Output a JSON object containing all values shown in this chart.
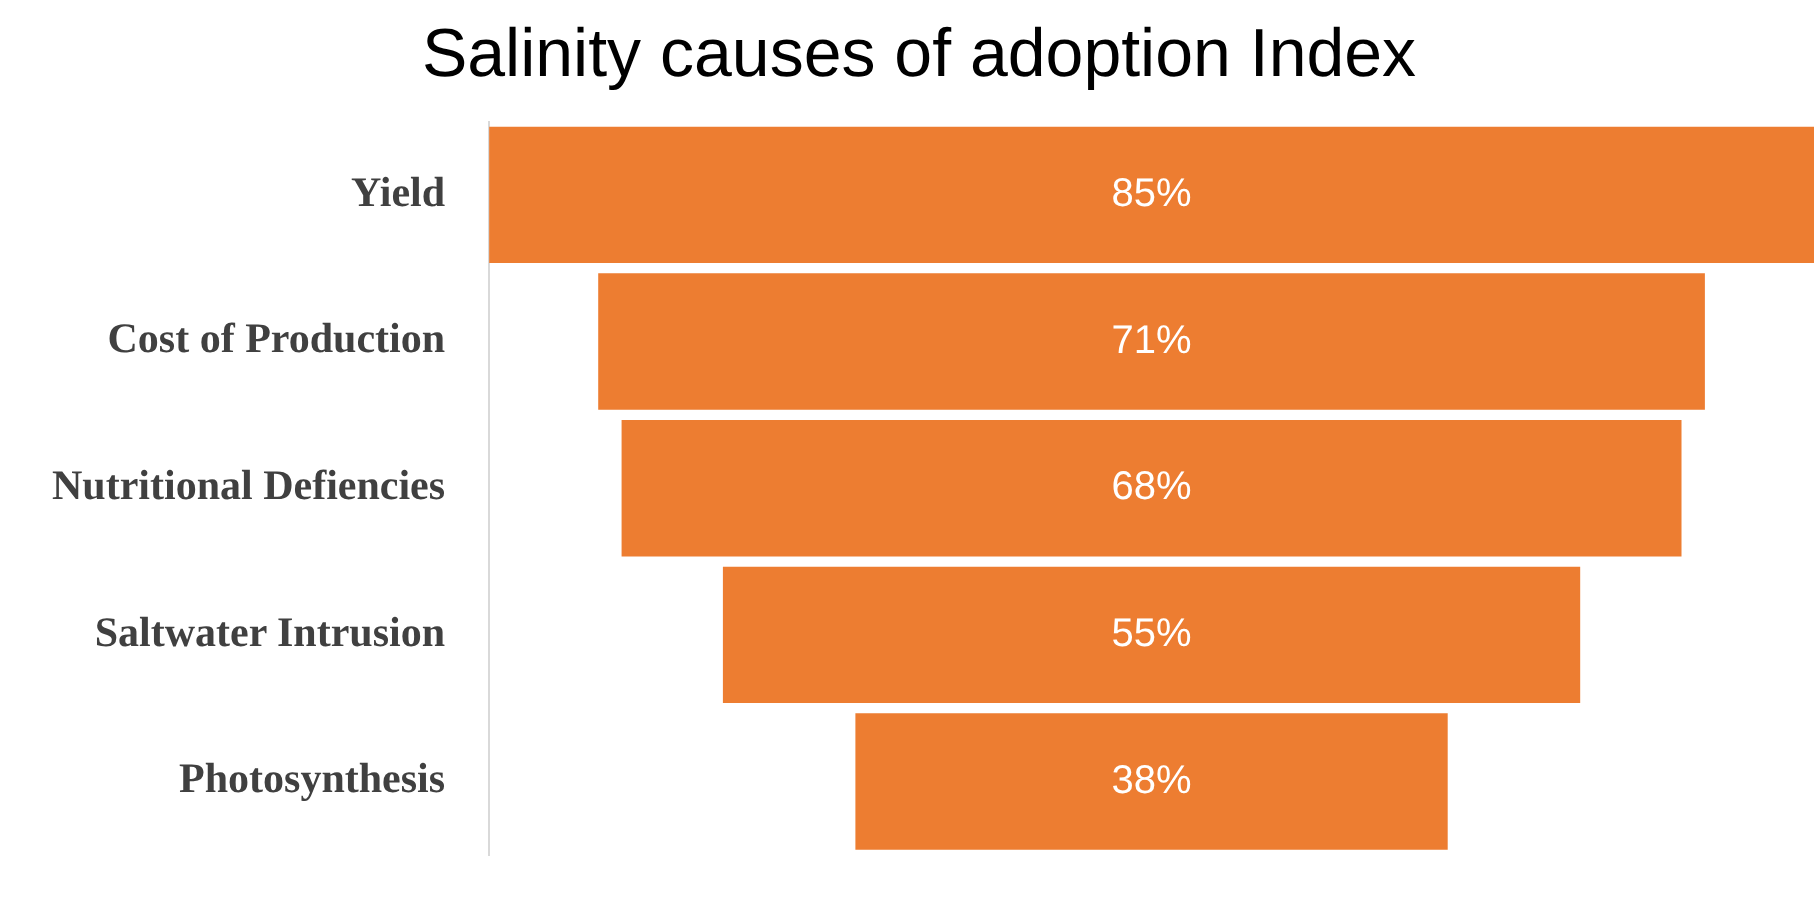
{
  "chart_data": {
    "type": "other",
    "title": "Salinity causes of adoption Index",
    "categories": [
      "Yield",
      "Cost of Production",
      "Nutritional Defiencies",
      "Saltwater Intrusion",
      "Photosynthesis"
    ],
    "values": [
      85,
      71,
      68,
      55,
      38
    ],
    "value_labels": [
      "85%",
      "71%",
      "68%",
      "55%",
      "38%"
    ],
    "color": "#ed7d31"
  }
}
